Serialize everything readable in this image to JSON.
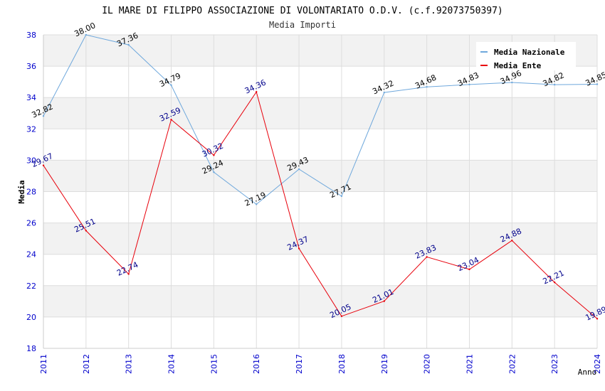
{
  "chart_data": {
    "type": "line",
    "title": "IL MARE DI FILIPPO ASSOCIAZIONE DI VOLONTARIATO O.D.V. (c.f.92073750397)",
    "subtitle": "Media Importi",
    "xlabel": "Anno",
    "ylabel": "Media",
    "ylim": [
      18,
      38
    ],
    "yticks": [
      "18",
      "20",
      "22",
      "24",
      "26",
      "28",
      "30",
      "32",
      "34",
      "36",
      "38"
    ],
    "x": [
      "2011",
      "2012",
      "2013",
      "2014",
      "2015",
      "2016",
      "2017",
      "2018",
      "2019",
      "2020",
      "2021",
      "2022",
      "2023",
      "2024"
    ],
    "legend_position": "top-right",
    "grid": true,
    "series": [
      {
        "name": "Media Nazionale",
        "color": "#6fa8dc",
        "label_color": "#000000",
        "values": [
          32.82,
          38.0,
          37.36,
          34.79,
          29.24,
          27.19,
          29.43,
          27.71,
          34.32,
          34.68,
          34.83,
          34.96,
          34.82,
          34.85
        ],
        "labels": [
          "32.82",
          "38.00",
          "37.36",
          "34.79",
          "29.24",
          "27.19",
          "29.43",
          "27.71",
          "34.32",
          "34.68",
          "34.83",
          "34.96",
          "34.82",
          "34.85"
        ]
      },
      {
        "name": "Media Ente",
        "color": "#e8000b",
        "label_color": "#00008b",
        "values": [
          29.67,
          25.51,
          22.74,
          32.59,
          30.32,
          34.36,
          24.37,
          20.05,
          21.01,
          23.83,
          23.04,
          24.88,
          22.21,
          19.89
        ],
        "labels": [
          "29.67",
          "25.51",
          "22.74",
          "32.59",
          "30.32",
          "34.36",
          "24.37",
          "20.05",
          "21.01",
          "23.83",
          "23.04",
          "24.88",
          "22.21",
          "19.89"
        ]
      }
    ]
  }
}
